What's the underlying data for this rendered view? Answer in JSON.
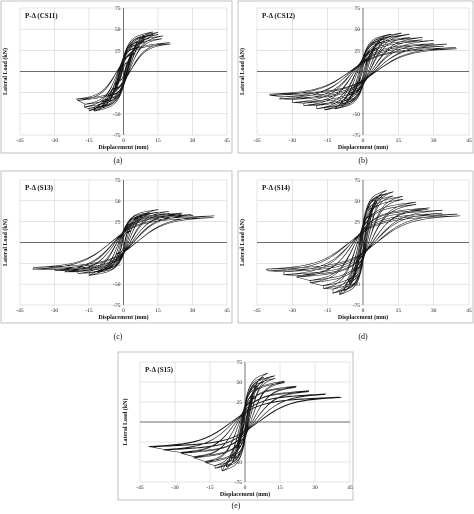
{
  "figure": {
    "axis_titles": {
      "x": "Displacement (mm)",
      "y": "Lateral Load (kN)"
    }
  },
  "chart_data": [
    {
      "type": "line",
      "panel_label": "(a)",
      "title": "P-Δ (CS11)",
      "xlabel": "Displacement (mm)",
      "ylabel": "Lateral Load (kN)",
      "xlim": [
        -45,
        45
      ],
      "ylim": [
        -75,
        75
      ],
      "xticks": [
        -45,
        -30,
        -15,
        0,
        15,
        30,
        45
      ],
      "yticks": [
        75,
        50,
        25,
        0,
        -25,
        -50,
        -75
      ],
      "grid": true,
      "legend": "none",
      "hysteresis_cycles": [
        {
          "dmax": 3,
          "fmax": 12
        },
        {
          "dmax": 5,
          "fmax": 22
        },
        {
          "dmax": 7,
          "fmax": 30
        },
        {
          "dmax": 9,
          "fmax": 37
        },
        {
          "dmax": 11,
          "fmax": 42
        },
        {
          "dmax": 13,
          "fmax": 46
        },
        {
          "dmax": 15,
          "fmax": 47
        },
        {
          "dmax": 17,
          "fmax": 42
        },
        {
          "dmax": 20,
          "fmax": 35
        }
      ]
    },
    {
      "type": "line",
      "panel_label": "(b)",
      "title": "P-Δ (CS12)",
      "xlabel": "Displacement (mm)",
      "ylabel": "Lateral Load (kN)",
      "xlim": [
        -45,
        45
      ],
      "ylim": [
        -75,
        75
      ],
      "xticks": [
        -45,
        -30,
        -15,
        0,
        15,
        30,
        45
      ],
      "yticks": [
        75,
        50,
        25,
        0,
        -25,
        -50,
        -75
      ],
      "grid": true,
      "legend": "none",
      "hysteresis_cycles": [
        {
          "dmax": 3,
          "fmax": 15
        },
        {
          "dmax": 6,
          "fmax": 28
        },
        {
          "dmax": 9,
          "fmax": 38
        },
        {
          "dmax": 12,
          "fmax": 44
        },
        {
          "dmax": 16,
          "fmax": 46
        },
        {
          "dmax": 20,
          "fmax": 44
        },
        {
          "dmax": 25,
          "fmax": 40
        },
        {
          "dmax": 30,
          "fmax": 36
        },
        {
          "dmax": 35,
          "fmax": 32
        },
        {
          "dmax": 40,
          "fmax": 28
        }
      ]
    },
    {
      "type": "line",
      "panel_label": "(c)",
      "title": "P-Δ (S13)",
      "xlabel": "Displacement (mm)",
      "ylabel": "Lateral Load (kN)",
      "xlim": [
        -45,
        45
      ],
      "ylim": [
        -75,
        75
      ],
      "xticks": [
        -45,
        -30,
        -15,
        0,
        15,
        30,
        45
      ],
      "yticks": [
        75,
        50,
        25,
        0,
        -25,
        -50,
        -75
      ],
      "grid": true,
      "legend": "none",
      "hysteresis_cycles": [
        {
          "dmax": 3,
          "fmax": 14
        },
        {
          "dmax": 5,
          "fmax": 25
        },
        {
          "dmax": 8,
          "fmax": 33
        },
        {
          "dmax": 11,
          "fmax": 37
        },
        {
          "dmax": 15,
          "fmax": 39
        },
        {
          "dmax": 20,
          "fmax": 38
        },
        {
          "dmax": 25,
          "fmax": 36
        },
        {
          "dmax": 30,
          "fmax": 34
        },
        {
          "dmax": 40,
          "fmax": 32
        }
      ]
    },
    {
      "type": "line",
      "panel_label": "(d)",
      "title": "P-Δ (S14)",
      "xlabel": "Displacement (mm)",
      "ylabel": "Lateral Load (kN)",
      "xlim": [
        -45,
        45
      ],
      "ylim": [
        -75,
        75
      ],
      "xticks": [
        -45,
        -30,
        -15,
        0,
        15,
        30,
        45
      ],
      "yticks": [
        75,
        50,
        25,
        0,
        -25,
        -50,
        -75
      ],
      "grid": true,
      "legend": "none",
      "hysteresis_cycles": [
        {
          "dmax": 2,
          "fmax": 18
        },
        {
          "dmax": 4,
          "fmax": 35
        },
        {
          "dmax": 6,
          "fmax": 48
        },
        {
          "dmax": 8,
          "fmax": 58
        },
        {
          "dmax": 10,
          "fmax": 63
        },
        {
          "dmax": 13,
          "fmax": 60
        },
        {
          "dmax": 17,
          "fmax": 55
        },
        {
          "dmax": 22,
          "fmax": 48
        },
        {
          "dmax": 28,
          "fmax": 42
        },
        {
          "dmax": 34,
          "fmax": 38
        },
        {
          "dmax": 41,
          "fmax": 34
        }
      ]
    },
    {
      "type": "line",
      "panel_label": "(e)",
      "title": "P-Δ (S15)",
      "xlabel": "Displacement (mm)",
      "ylabel": "Lateral Load (kN)",
      "xlim": [
        -45,
        45
      ],
      "ylim": [
        -75,
        75
      ],
      "xticks": [
        -45,
        -30,
        -15,
        0,
        15,
        30,
        45
      ],
      "yticks": [
        75,
        50,
        25,
        0,
        -25,
        -50,
        -75
      ],
      "grid": true,
      "legend": "none",
      "hysteresis_cycles": [
        {
          "dmax": 2,
          "fmax": 16
        },
        {
          "dmax": 4,
          "fmax": 32
        },
        {
          "dmax": 6,
          "fmax": 45
        },
        {
          "dmax": 8,
          "fmax": 55
        },
        {
          "dmax": 10,
          "fmax": 60
        },
        {
          "dmax": 13,
          "fmax": 58
        },
        {
          "dmax": 17,
          "fmax": 52
        },
        {
          "dmax": 22,
          "fmax": 46
        },
        {
          "dmax": 28,
          "fmax": 40
        },
        {
          "dmax": 34,
          "fmax": 36
        },
        {
          "dmax": 41,
          "fmax": 32
        }
      ]
    }
  ]
}
